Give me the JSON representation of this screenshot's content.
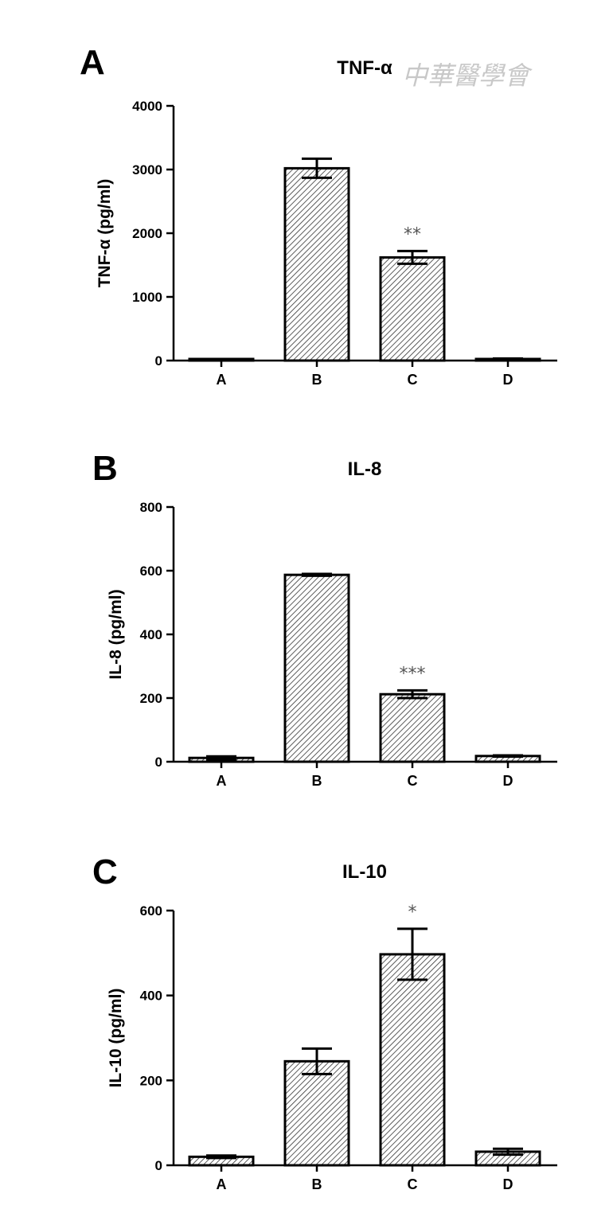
{
  "watermark": {
    "text": "中華醫學會"
  },
  "chart_data": [
    {
      "type": "bar",
      "panel": "A",
      "title": "TNF-α",
      "ylabel": "TNF-α  (pg/ml)",
      "xlabel": "",
      "ylim": [
        0,
        4000
      ],
      "yticks": [
        0,
        1000,
        2000,
        3000,
        4000
      ],
      "categories": [
        "A",
        "B",
        "C",
        "D"
      ],
      "values": [
        5,
        3020,
        1620,
        25
      ],
      "errors": [
        3,
        150,
        100,
        8
      ],
      "significance": [
        "",
        "",
        "**",
        ""
      ],
      "bar_pattern": "diagonal-hatch",
      "grid": false
    },
    {
      "type": "bar",
      "panel": "B",
      "title": "IL-8",
      "ylabel": "IL-8  (pg/ml)",
      "xlabel": "",
      "ylim": [
        0,
        800
      ],
      "yticks": [
        0,
        200,
        400,
        600,
        800
      ],
      "categories": [
        "A",
        "B",
        "C",
        "D"
      ],
      "values": [
        12,
        587,
        212,
        18
      ],
      "errors": [
        5,
        3,
        12,
        2
      ],
      "significance": [
        "",
        "",
        "***",
        ""
      ],
      "bar_pattern": "diagonal-hatch",
      "grid": false
    },
    {
      "type": "bar",
      "panel": "C",
      "title": "IL-10",
      "ylabel": "IL-10  (pg/ml)",
      "xlabel": "",
      "ylim": [
        0,
        600
      ],
      "yticks": [
        0,
        200,
        400,
        600
      ],
      "categories": [
        "A",
        "B",
        "C",
        "D"
      ],
      "values": [
        20,
        245,
        497,
        32
      ],
      "errors": [
        3,
        30,
        60,
        7
      ],
      "significance": [
        "",
        "",
        "*",
        ""
      ],
      "bar_pattern": "diagonal-hatch",
      "grid": false
    }
  ]
}
